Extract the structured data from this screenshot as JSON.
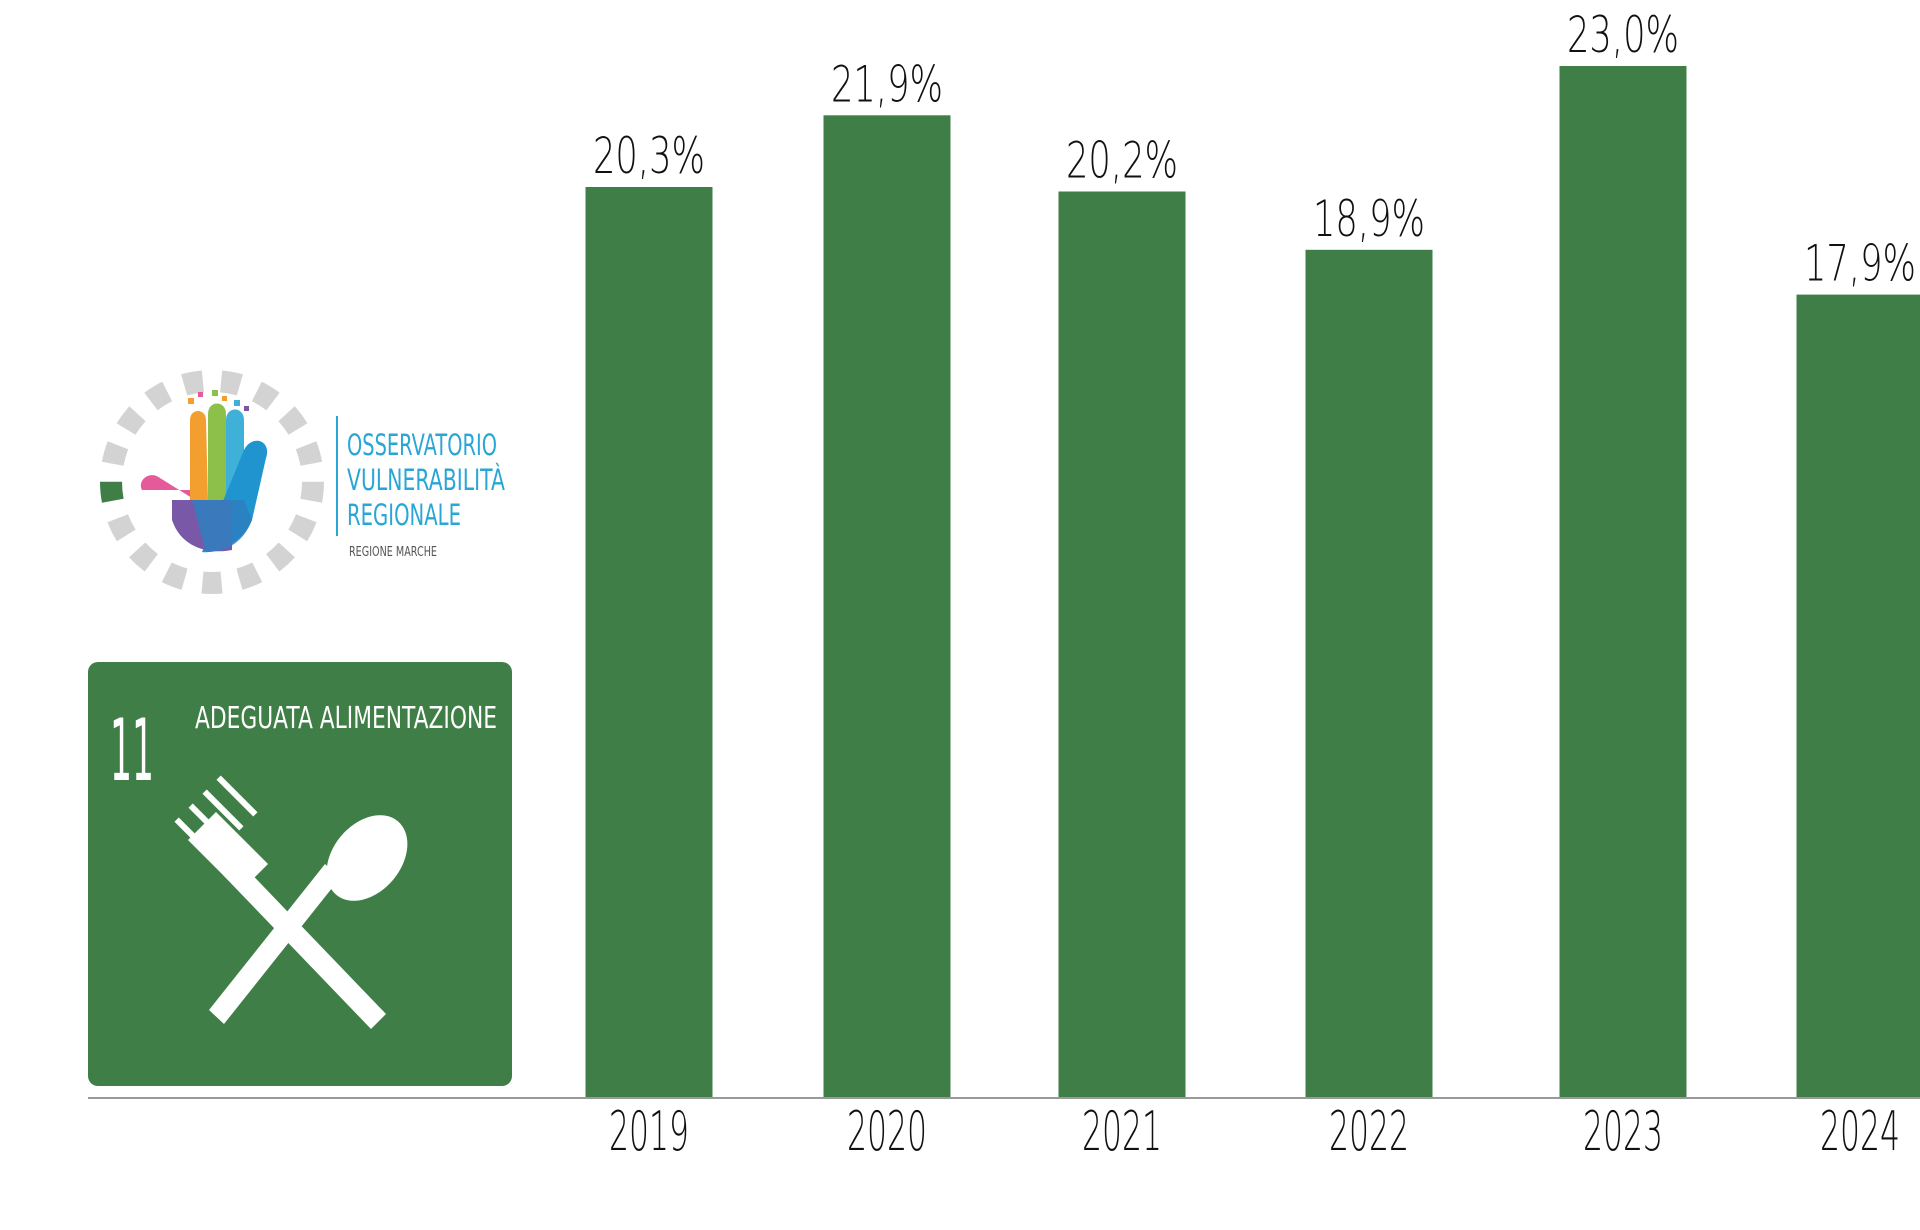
{
  "logo": {
    "lines": [
      "OSSERVATORIO",
      "VULNERABILITÀ",
      "REGIONALE"
    ],
    "subtitle": "REGIONE MARCHE",
    "ring_color": "#d3d3d3",
    "accent_color": "#3f7f47",
    "text_color": "#29a6d6"
  },
  "badge": {
    "number": "11",
    "title": "ADEGUATA ALIMENTAZIONE",
    "icon": "fork-spoon-crossed-icon",
    "color": "#3f7f47"
  },
  "chart_data": {
    "type": "bar",
    "categories": [
      "2019",
      "2020",
      "2021",
      "2022",
      "2023",
      "2024"
    ],
    "values": [
      20.3,
      21.9,
      20.2,
      18.9,
      23.0,
      17.9
    ],
    "value_labels": [
      "20,3%",
      "21,9%",
      "20,2%",
      "18,9%",
      "23,0%",
      "17,9%"
    ],
    "title": "",
    "xlabel": "",
    "ylabel": "",
    "bar_color": "#3f7f47",
    "grid": false,
    "legend": "none"
  }
}
